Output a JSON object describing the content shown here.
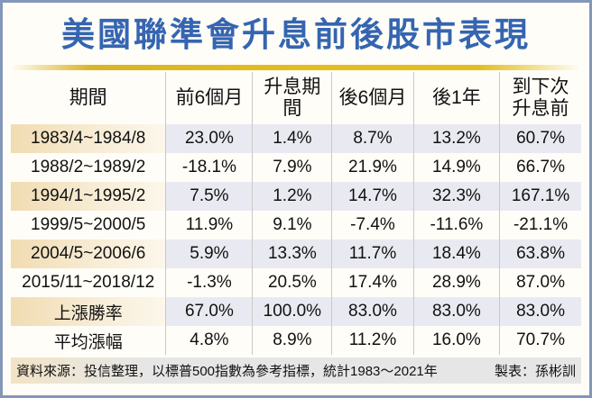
{
  "title": "美國聯準會升息前後股市表現",
  "chart_data": {
    "type": "table",
    "title": "美國聯準會升息前後股市表現",
    "columns": [
      "期間",
      "前6個月",
      "升息期間",
      "後6個月",
      "後1年",
      "到下次\n升息前"
    ],
    "rows": [
      [
        "1983/4~1984/8",
        "23.0%",
        "1.4%",
        "8.7%",
        "13.2%",
        "60.7%"
      ],
      [
        "1988/2~1989/2",
        "-18.1%",
        "7.9%",
        "21.9%",
        "14.9%",
        "66.7%"
      ],
      [
        "1994/1~1995/2",
        "7.5%",
        "1.2%",
        "14.7%",
        "32.3%",
        "167.1%"
      ],
      [
        "1999/5~2000/5",
        "11.9%",
        "9.1%",
        "-7.4%",
        "-11.6%",
        "-21.1%"
      ],
      [
        "2004/5~2006/6",
        "5.9%",
        "13.3%",
        "11.7%",
        "18.4%",
        "63.8%"
      ],
      [
        "2015/11~2018/12",
        "-1.3%",
        "20.5%",
        "17.4%",
        "28.9%",
        "87.0%"
      ],
      [
        "上漲勝率",
        "67.0%",
        "100.0%",
        "83.0%",
        "83.0%",
        "83.0%"
      ],
      [
        "平均漲幅",
        "4.8%",
        "8.9%",
        "11.2%",
        "16.0%",
        "70.7%"
      ]
    ],
    "note": "資料來源：投信整理，以標普500指數為參考指標，統計1983～2021年",
    "credit": "製表：孫彬訓"
  },
  "colors": {
    "title_blue": "#3565b1",
    "gold_rule": "#e2bd1e",
    "stripe_lavender": "#e9eaf1",
    "stripe_cream": "#f1dcb2",
    "card_border": "#8397b9",
    "footer_gray": "#e6e6e6",
    "divider_gray": "#c9c9c9"
  }
}
